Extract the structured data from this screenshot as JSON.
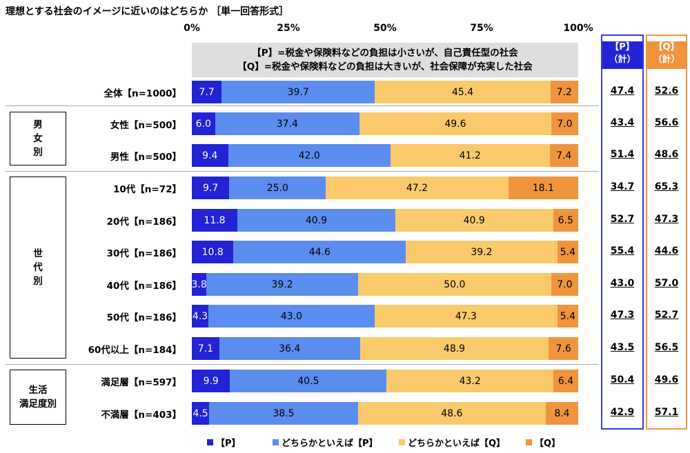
{
  "title": "理想とする社会のイメージに近いのはどちらか ［単一回答形式］",
  "axis_ticks": [
    "0%",
    "25%",
    "50%",
    "75%",
    "100%"
  ],
  "legend_box": {
    "line1": "【P】=税金や保険料などの負担は小さいが、自己責任型の社会",
    "line2": "【Q】=税金や保険料などの負担は大きいが、社会保障が充実した社会"
  },
  "col_heads": {
    "p": "【P】\n（計）",
    "q": "【Q】\n（計）"
  },
  "groups": [
    {
      "label": "男\n女\n別"
    },
    {
      "label": "世\n代\n別"
    },
    {
      "label": "生活\n満足度別"
    }
  ],
  "legend": [
    "【P】",
    "どちらかといえば【P】",
    "どちらかといえば【Q】",
    "【Q】"
  ],
  "colors": {
    "p": "#2323d6",
    "lean_p": "#5b8def",
    "lean_q": "#f9c96b",
    "q": "#f0953e",
    "p_frame": "#3a3adf",
    "q_frame": "#f0953e"
  },
  "chart_data": {
    "type": "bar",
    "orientation": "horizontal",
    "stacked": true,
    "title": "理想とする社会のイメージに近いのはどちらか ［単一回答形式］",
    "xlim": [
      0,
      100
    ],
    "categories": [
      "全体【n=1000】",
      "女性【n=500】",
      "男性【n=500】",
      "10代【n=72】",
      "20代【n=186】",
      "30代【n=186】",
      "40代【n=186】",
      "50代【n=186】",
      "60代以上【n=184】",
      "満足層【n=597】",
      "不満層【n=403】"
    ],
    "series": [
      {
        "name": "【P】",
        "values": [
          7.7,
          6.0,
          9.4,
          9.7,
          11.8,
          10.8,
          3.8,
          4.3,
          7.1,
          9.9,
          4.5
        ]
      },
      {
        "name": "どちらかといえば【P】",
        "values": [
          39.7,
          37.4,
          42.0,
          25.0,
          40.9,
          44.6,
          39.2,
          43.0,
          36.4,
          40.5,
          38.5
        ]
      },
      {
        "name": "どちらかといえば【Q】",
        "values": [
          45.4,
          49.6,
          41.2,
          47.2,
          40.9,
          39.2,
          50.0,
          47.3,
          48.9,
          43.2,
          48.6
        ]
      },
      {
        "name": "【Q】",
        "values": [
          7.2,
          7.0,
          7.4,
          18.1,
          6.5,
          5.4,
          7.0,
          5.4,
          7.6,
          6.4,
          8.4
        ]
      }
    ],
    "totals": {
      "p": [
        47.4,
        43.4,
        51.4,
        34.7,
        52.7,
        55.4,
        43.0,
        47.3,
        43.5,
        50.4,
        42.9
      ],
      "q": [
        52.6,
        56.6,
        48.6,
        65.3,
        47.3,
        44.6,
        57.0,
        52.7,
        56.5,
        49.6,
        57.1
      ]
    }
  }
}
